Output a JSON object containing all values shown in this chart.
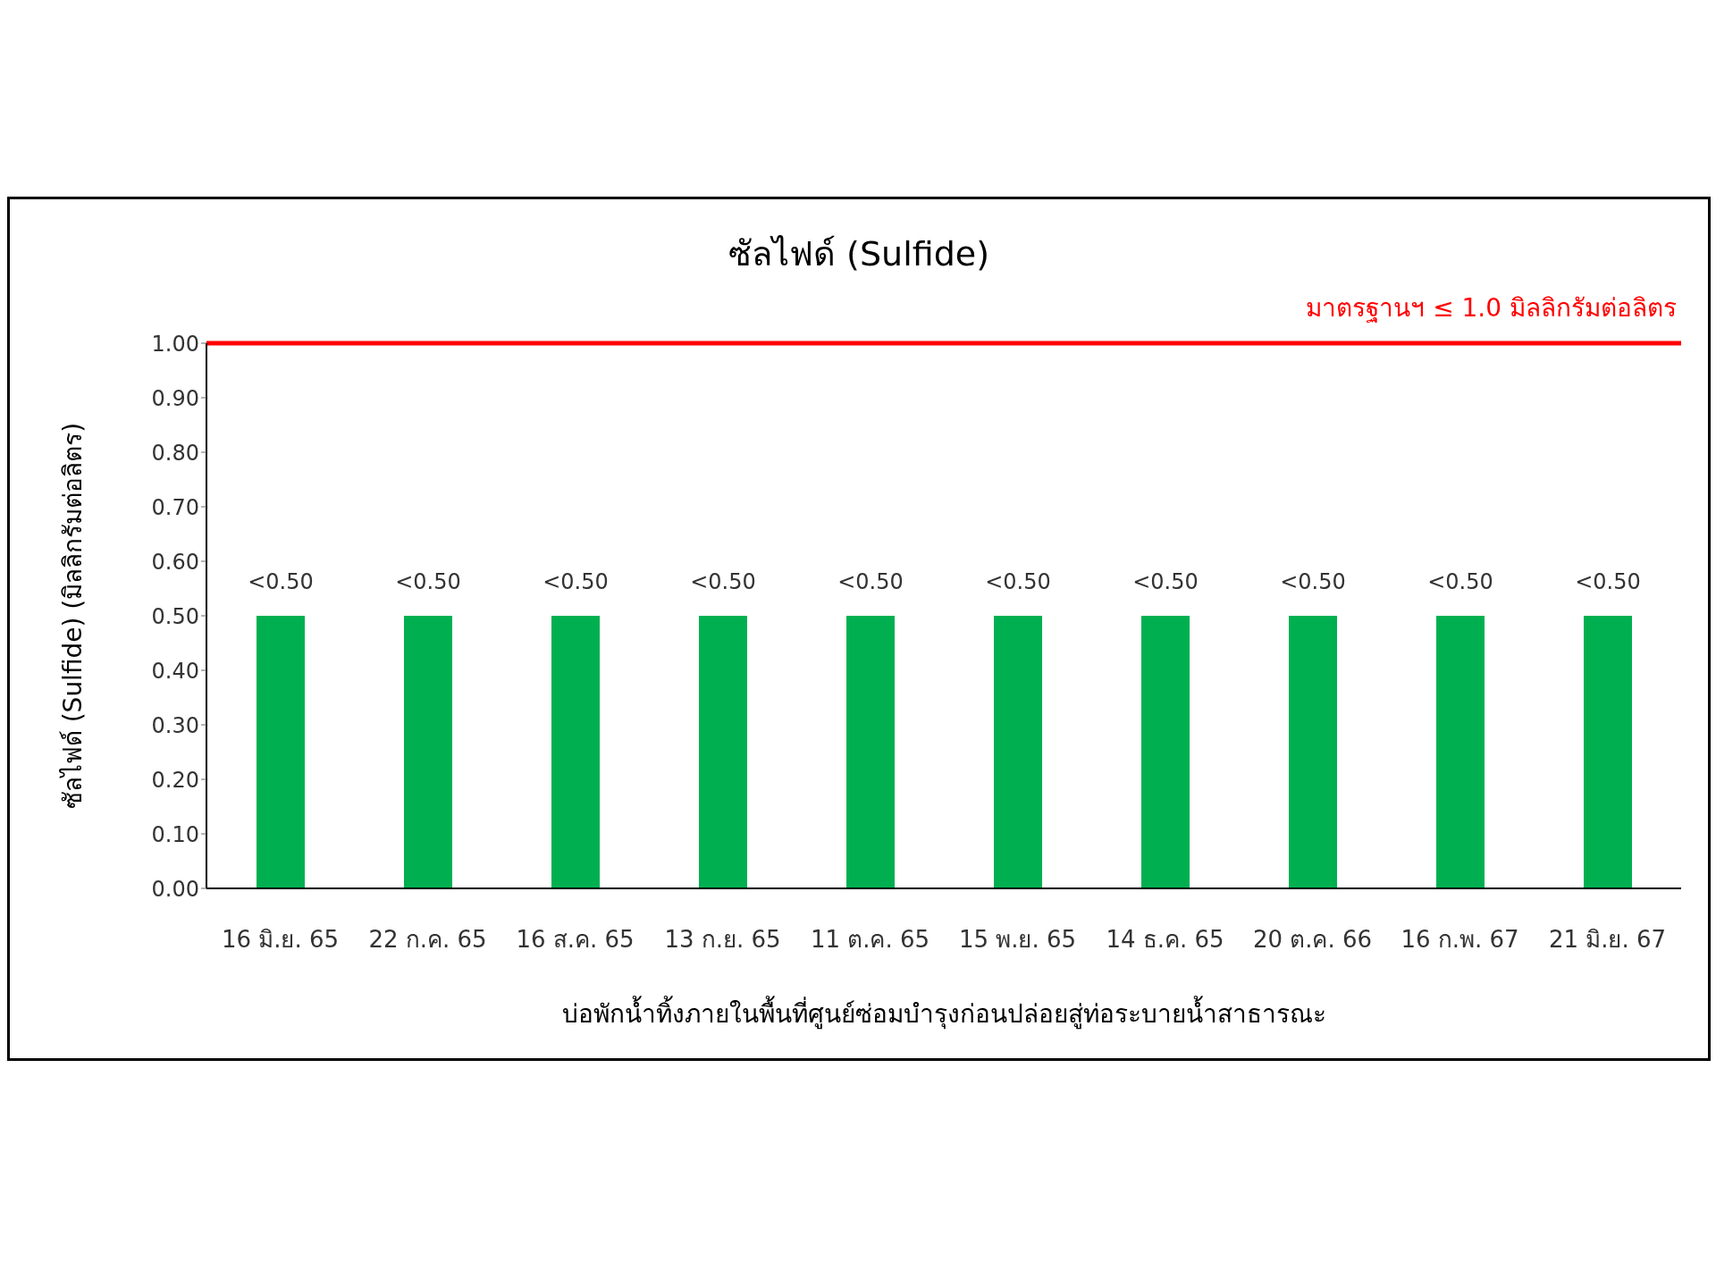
{
  "chart_data": {
    "type": "bar",
    "title": "ซัลไฟด์ (Sulfide)",
    "xlabel": "บ่อพักน้ำทิ้งภายในพื้นที่ศูนย์ซ่อมบำรุงก่อนปล่อยสู่ท่อระบายน้ำสาธารณะ",
    "ylabel": "ซัลไฟด์ (Sulfide) (มิลลิกรัมต่อลิตร)",
    "categories": [
      "16 มิ.ย. 65",
      "22 ก.ค. 65",
      "16 ส.ค. 65",
      "13 ก.ย. 65",
      "11 ต.ค. 65",
      "15 พ.ย. 65",
      "14 ธ.ค. 65",
      "20 ต.ค. 66",
      "16 ก.พ. 67",
      "21 มิ.ย. 67"
    ],
    "values": [
      0.5,
      0.5,
      0.5,
      0.5,
      0.5,
      0.5,
      0.5,
      0.5,
      0.5,
      0.5
    ],
    "value_labels": [
      "<0.50",
      "<0.50",
      "<0.50",
      "<0.50",
      "<0.50",
      "<0.50",
      "<0.50",
      "<0.50",
      "<0.50",
      "<0.50"
    ],
    "color": "#00b050",
    "ylim": [
      0,
      1
    ],
    "yticks": [
      {
        "value": 0,
        "label": "0.00"
      },
      {
        "value": 0.1,
        "label": "0.10"
      },
      {
        "value": 0.2,
        "label": "0.20"
      },
      {
        "value": 0.3,
        "label": "0.30"
      },
      {
        "value": 0.4,
        "label": "0.40"
      },
      {
        "value": 0.5,
        "label": "0.50"
      },
      {
        "value": 0.6,
        "label": "0.60"
      },
      {
        "value": 0.7,
        "label": "0.70"
      },
      {
        "value": 0.8,
        "label": "0.80"
      },
      {
        "value": 0.9,
        "label": "0.90"
      },
      {
        "value": 1,
        "label": "1.00"
      }
    ],
    "ref_lines": [
      {
        "axis": "y",
        "value": 1.0,
        "label": "มาตรฐานฯ ≤ 1.0 มิลลิกรัมต่อลิตร",
        "color": "#ff0000"
      }
    ],
    "grid": false,
    "legend": false
  }
}
